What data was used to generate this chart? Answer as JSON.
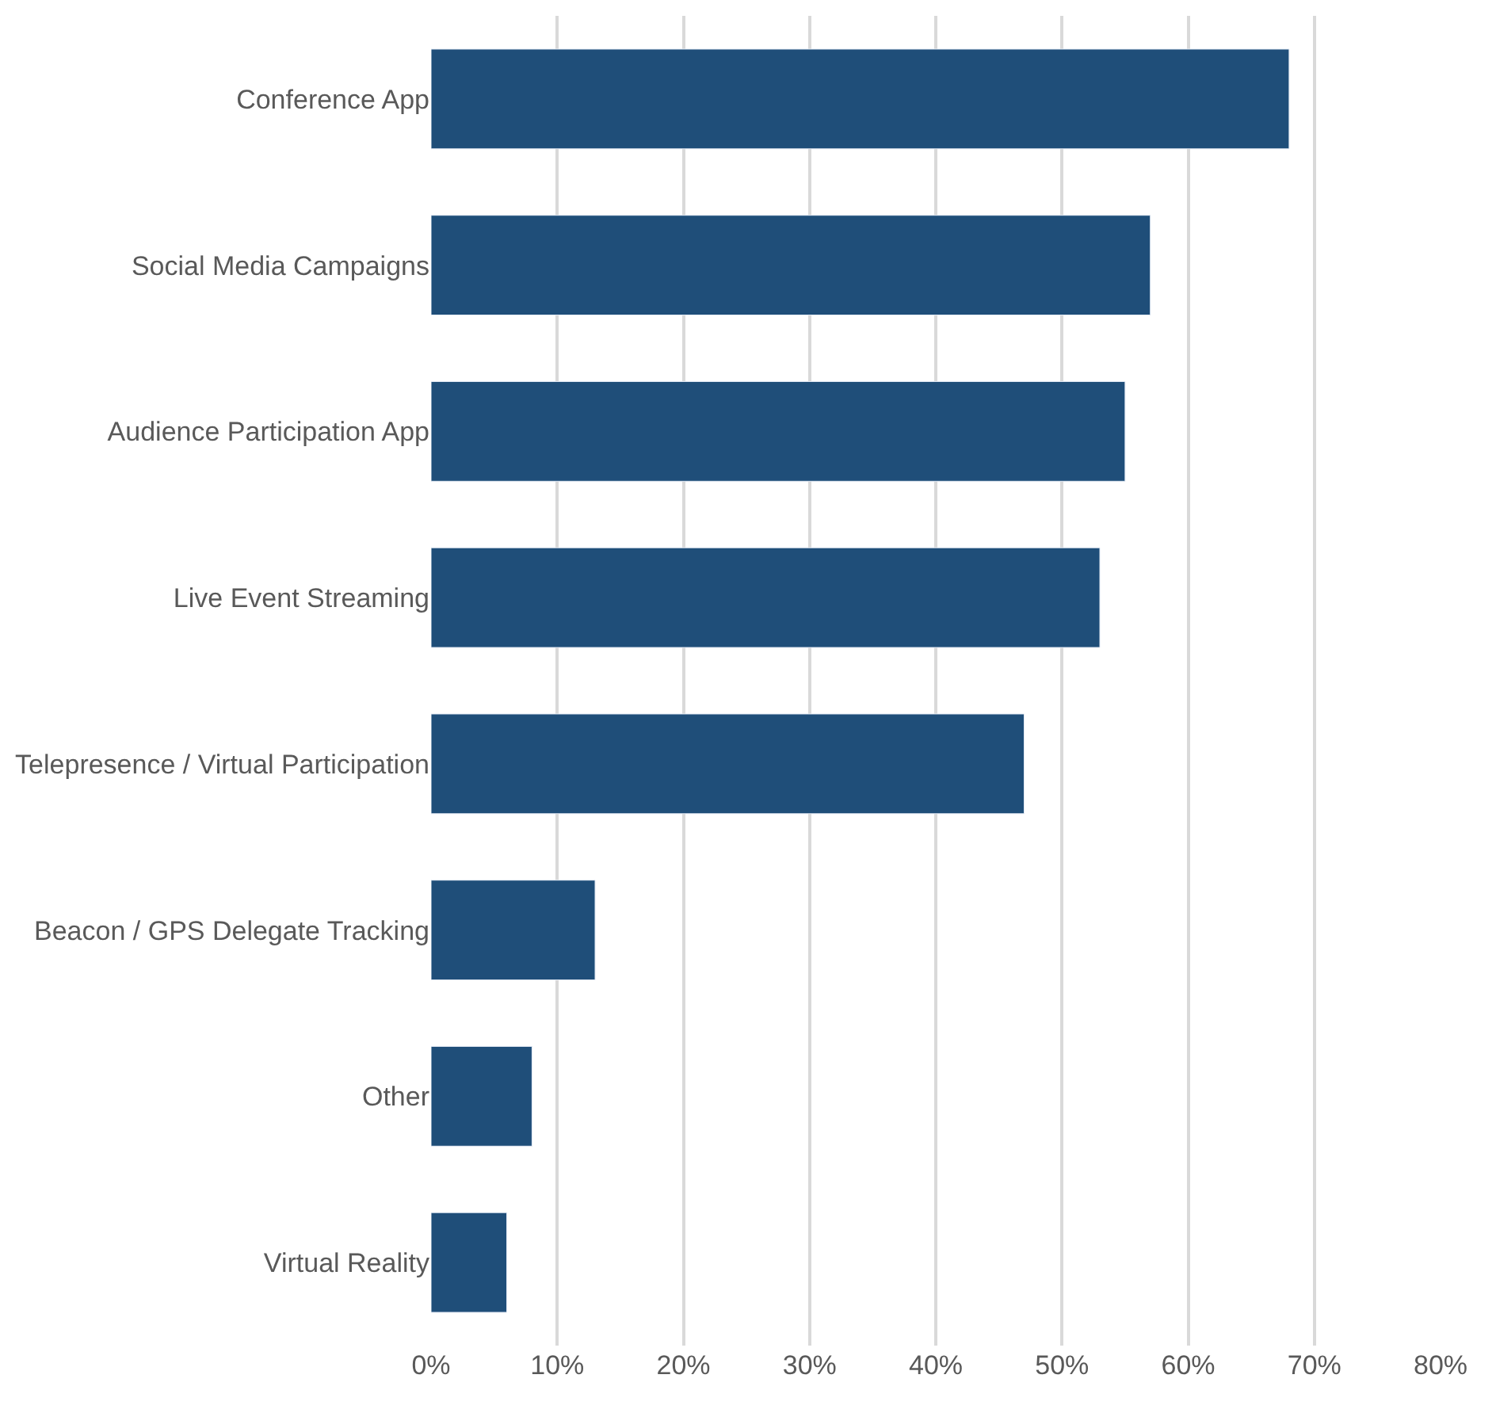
{
  "chart_data": {
    "type": "bar",
    "orientation": "horizontal",
    "categories": [
      "Conference App",
      "Social Media Campaigns",
      "Audience Participation App",
      "Live Event Streaming",
      "Telepresence / Virtual Participation",
      "Beacon / GPS Delegate Tracking",
      "Other",
      "Virtual Reality"
    ],
    "values": [
      68,
      57,
      55,
      53,
      47,
      13,
      8,
      6
    ],
    "color": "#1f4e79",
    "xlim": [
      0,
      80
    ],
    "xticks": [
      {
        "value": 0,
        "label": "0%"
      },
      {
        "value": 10,
        "label": "10%"
      },
      {
        "value": 20,
        "label": "20%"
      },
      {
        "value": 30,
        "label": "30%"
      },
      {
        "value": 40,
        "label": "40%"
      },
      {
        "value": 50,
        "label": "50%"
      },
      {
        "value": 60,
        "label": "60%"
      },
      {
        "value": 70,
        "label": "70%"
      },
      {
        "value": 80,
        "label": "80%"
      }
    ],
    "grid": "x",
    "legend": false
  }
}
